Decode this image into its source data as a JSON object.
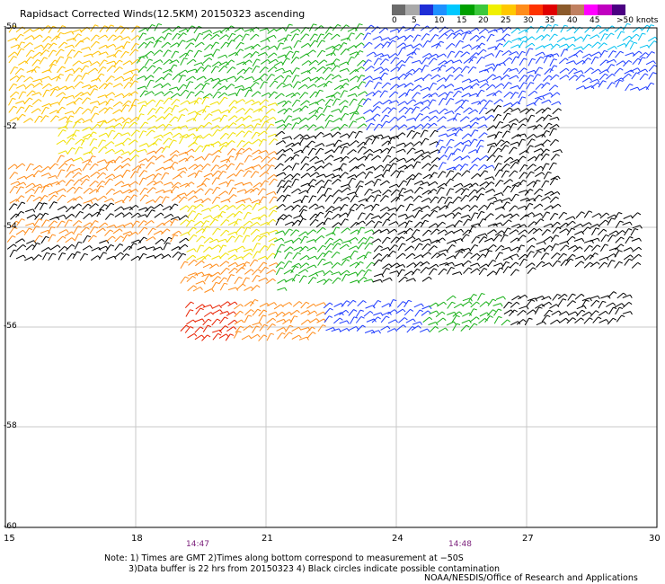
{
  "title": "Rapidsact Corrected Winds(12.5KM) 20150323 ascending",
  "scale": {
    "labels": [
      "0",
      "5",
      "10",
      "15",
      "20",
      "25",
      "30",
      "35",
      "40",
      "45",
      ">50 knots"
    ],
    "colors": [
      "#6b6b6b",
      "#a9a9a9",
      "#1e2dd6",
      "#1e90ff",
      "#00c8ff",
      "#00a000",
      "#3cc83c",
      "#f0f000",
      "#ffc800",
      "#ff8c1a",
      "#ff3300",
      "#e00000",
      "#8b5a2b",
      "#c08060",
      "#ff00ff",
      "#c000c0",
      "#4b0082"
    ]
  },
  "axes": {
    "lat_labels": [
      "-50",
      "-52",
      "-54",
      "-56",
      "-58",
      "-60"
    ],
    "lon_labels": [
      "15",
      "18",
      "21",
      "24",
      "27",
      "30"
    ],
    "time_labels": [
      "14:47",
      "14:48"
    ]
  },
  "notes": {
    "line1": "Note: 1) Times are GMT 2)Times along bottom correspond to measurement at −50S",
    "line2": "3)Data buffer is 22 hrs from 20150323 4) Black circles indicate possible contamination"
  },
  "credit": "NOAA/NESDIS/Office of Research and Applications"
}
